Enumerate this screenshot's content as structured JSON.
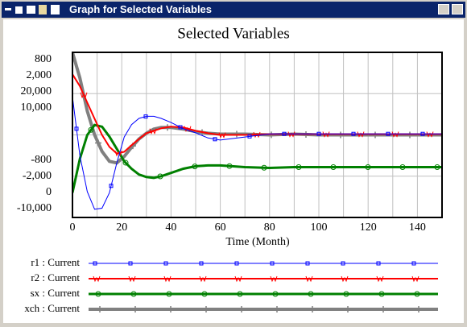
{
  "window": {
    "title": "Graph for Selected Variables"
  },
  "chart_data": {
    "type": "line",
    "title": "Selected Variables",
    "x_label": "Time (Month)",
    "x": [
      0,
      3,
      6,
      9,
      12,
      15,
      18,
      21,
      24,
      27,
      30,
      33,
      36,
      40,
      45,
      50,
      55,
      60,
      70,
      80,
      90,
      100,
      110,
      120,
      130,
      140,
      150
    ],
    "xlim": [
      0,
      150
    ],
    "xticks": [
      0,
      20,
      40,
      60,
      80,
      100,
      120,
      140
    ],
    "grid": true,
    "series": [
      {
        "name": "r1 : Current",
        "color": "#0000ff",
        "ylim": [
          -800,
          800
        ],
        "yticks": [
          800,
          -800
        ],
        "values": [
          370,
          -200,
          -550,
          -720,
          -710,
          -560,
          -270,
          -20,
          100,
          160,
          180,
          180,
          160,
          120,
          60,
          20,
          -30,
          -50,
          -20,
          10,
          10,
          10,
          10,
          10,
          10,
          10,
          10
        ]
      },
      {
        "name": "r2 : Current",
        "color": "#ff0000",
        "ylim": [
          -2000,
          2000
        ],
        "yticks": [
          {
            "value": 2000,
            "label": "2,000"
          },
          {
            "value": -2000,
            "label": "-2,000"
          }
        ],
        "values": [
          1470,
          1180,
          780,
          390,
          0,
          -290,
          -450,
          -410,
          -250,
          -100,
          40,
          100,
          160,
          200,
          180,
          100,
          40,
          0,
          0,
          20,
          20,
          20,
          20,
          20,
          20,
          20,
          20
        ]
      },
      {
        "name": "sx : Current",
        "color": "#008000",
        "ylim": [
          0,
          20000
        ],
        "yticks": [
          {
            "value": 20000,
            "label": "20,000"
          },
          0
        ],
        "values": [
          3000,
          7100,
          10000,
          11200,
          11000,
          9800,
          8300,
          6800,
          5900,
          5200,
          4900,
          4800,
          5000,
          5400,
          5900,
          6200,
          6300,
          6300,
          6100,
          6000,
          6100,
          6100,
          6100,
          6100,
          6100,
          6100,
          6100
        ]
      },
      {
        "name": "xch : Current",
        "color": "#808080",
        "ylim": [
          -10000,
          10000
        ],
        "yticks": [
          {
            "value": 10000,
            "label": "10,000"
          },
          {
            "value": -10000,
            "label": "-10,000"
          }
        ],
        "values": [
          10000,
          6900,
          2900,
          0,
          -2000,
          -3200,
          -3400,
          -2600,
          -1500,
          -500,
          200,
          700,
          900,
          900,
          700,
          400,
          200,
          100,
          100,
          0,
          100,
          0,
          0,
          0,
          0,
          0,
          0
        ]
      }
    ]
  }
}
